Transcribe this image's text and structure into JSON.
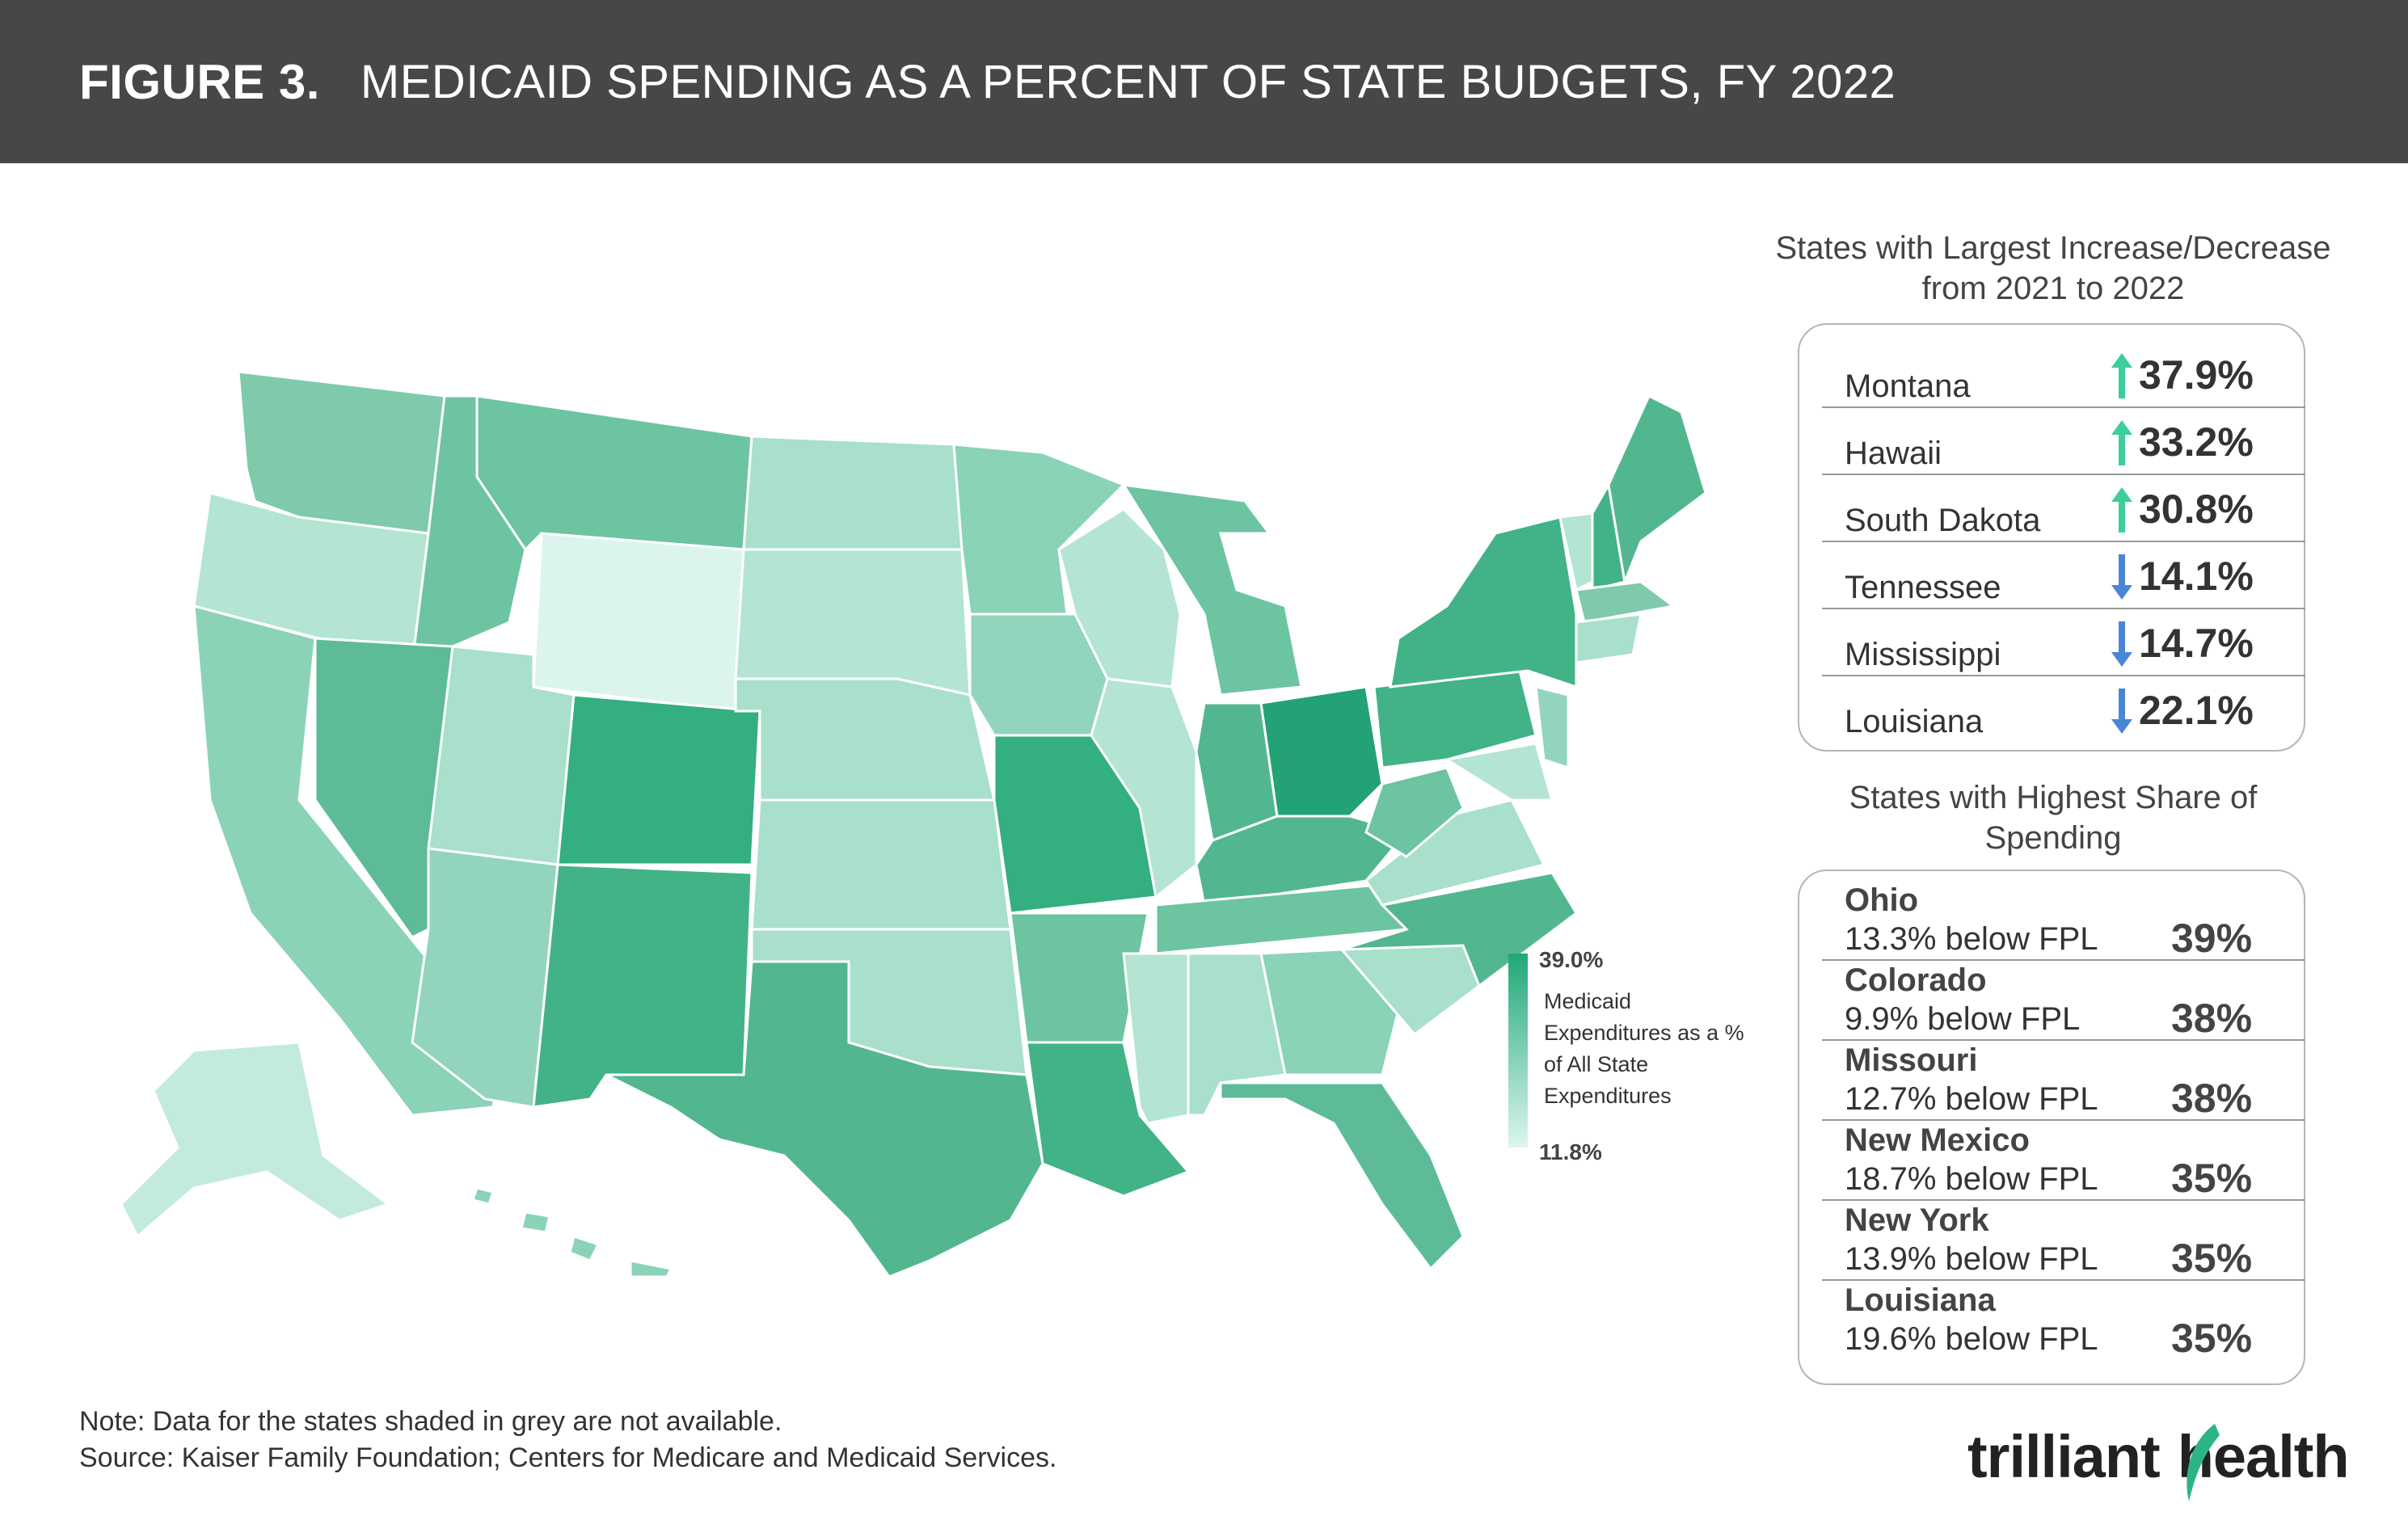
{
  "header": {
    "figure_label": "FIGURE 3.",
    "title": "MEDICAID SPENDING AS A PERCENT OF STATE BUDGETS, FY 2022",
    "background": "#474747"
  },
  "legend": {
    "max_label": "39.0%",
    "min_label": "11.8%",
    "description": "Medicaid Expenditures as a % of All State Expenditures",
    "color_high": "#1fa876",
    "color_low": "#ddf6ee"
  },
  "change_panel": {
    "title_line1": "States with Largest Increase/Decrease",
    "title_line2": "from 2021 to 2022",
    "rows": [
      {
        "state": "Montana",
        "direction": "up",
        "value": "37.9%"
      },
      {
        "state": "Hawaii",
        "direction": "up",
        "value": "33.2%"
      },
      {
        "state": "South Dakota",
        "direction": "up",
        "value": "30.8%"
      },
      {
        "state": "Tennessee",
        "direction": "down",
        "value": "14.1%"
      },
      {
        "state": "Mississippi",
        "direction": "down",
        "value": "14.7%"
      },
      {
        "state": "Louisiana",
        "direction": "down",
        "value": "22.1%"
      }
    ],
    "up_color": "#3ccf9a",
    "down_color": "#4a86d6"
  },
  "share_panel": {
    "title_line1": "States with Highest Share of",
    "title_line2": "Spending",
    "rows": [
      {
        "state": "Ohio",
        "fpl": "13.3% below FPL",
        "share": "39%"
      },
      {
        "state": "Colorado",
        "fpl": "9.9% below FPL",
        "share": "38%"
      },
      {
        "state": "Missouri",
        "fpl": "12.7% below FPL",
        "share": "38%"
      },
      {
        "state": "New Mexico",
        "fpl": "18.7% below FPL",
        "share": "35%"
      },
      {
        "state": "New York",
        "fpl": "13.9% below FPL",
        "share": "35%"
      },
      {
        "state": "Louisiana",
        "fpl": "19.6% below FPL",
        "share": "35%"
      }
    ]
  },
  "footer": {
    "note": "Note: Data for the states shaded in grey are not available.",
    "source": "Source: Kaiser Family Foundation; Centers for Medicare and Medicaid Services."
  },
  "logo": {
    "part1": "trilliant",
    "part2": "health",
    "accent": "#2bb585"
  }
}
